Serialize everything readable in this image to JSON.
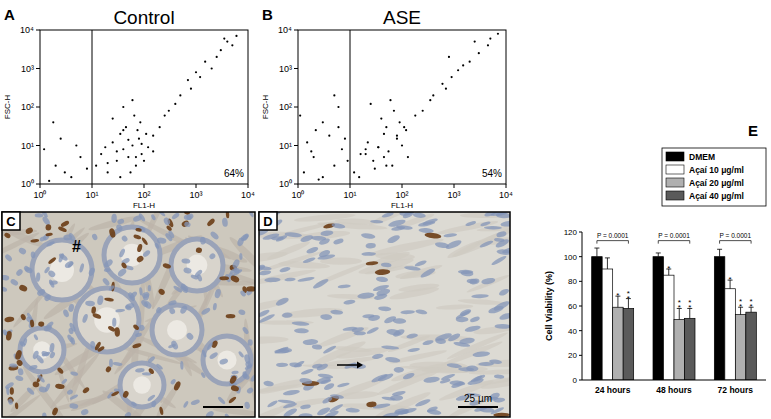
{
  "chart_data": [
    {
      "type": "scatter",
      "panel": "A",
      "title": "Control",
      "x_label": "FL1-H",
      "y_label": "FSC-H",
      "log": true,
      "xlim": [
        1,
        10000
      ],
      "ylim": [
        1,
        10000
      ],
      "xticks": [
        {
          "value": 1,
          "label": "10⁰"
        },
        {
          "value": 10,
          "label": "10¹"
        },
        {
          "value": 100,
          "label": "10²"
        },
        {
          "value": 1000,
          "label": "10³"
        },
        {
          "value": 10000,
          "label": "10⁴"
        }
      ],
      "yticks": [
        {
          "value": 1,
          "label": "10⁰"
        },
        {
          "value": 10,
          "label": "10¹"
        },
        {
          "value": 100,
          "label": "10²"
        },
        {
          "value": 1000,
          "label": "10³"
        },
        {
          "value": 10000,
          "label": "10⁴"
        }
      ],
      "gate_x": 10,
      "annotation": "64%",
      "color": "#000000",
      "marker": "dot",
      "x": [
        1.5,
        2,
        3,
        1.2,
        4,
        6,
        2.5,
        8,
        1.8,
        5,
        12,
        15,
        20,
        25,
        30,
        35,
        40,
        50,
        60,
        70,
        80,
        90,
        100,
        120,
        150,
        45,
        55,
        65,
        75,
        35,
        25,
        18,
        40,
        60,
        85,
        110,
        200,
        300,
        500,
        700,
        1000,
        1500,
        2000,
        3000,
        4000,
        6000,
        800,
        1200,
        2500,
        5000,
        50,
        70,
        30,
        90,
        150,
        20,
        40,
        250,
        400,
        3500
      ],
      "y": [
        1.2,
        3,
        2,
        8,
        1.5,
        5,
        15,
        2.5,
        40,
        10,
        3,
        6,
        2,
        12,
        4,
        20,
        8,
        5,
        10,
        3,
        15,
        6,
        4,
        9,
        7,
        30,
        2,
        60,
        25,
        1.5,
        50,
        9,
        100,
        150,
        40,
        20,
        30,
        80,
        200,
        500,
        800,
        1500,
        1000,
        3000,
        5000,
        7000,
        300,
        600,
        2000,
        4000,
        14,
        5,
        7,
        11,
        18,
        3.5,
        25,
        60,
        120,
        6000
      ]
    },
    {
      "type": "scatter",
      "panel": "B",
      "title": "ASE",
      "x_label": "FL1-H",
      "y_label": "FSC-H",
      "log": true,
      "xlim": [
        1,
        10000
      ],
      "ylim": [
        1,
        10000
      ],
      "xticks": [
        {
          "value": 1,
          "label": "10⁰"
        },
        {
          "value": 10,
          "label": "10¹"
        },
        {
          "value": 100,
          "label": "10²"
        },
        {
          "value": 1000,
          "label": "10³"
        },
        {
          "value": 10000,
          "label": "10⁴"
        }
      ],
      "yticks": [
        {
          "value": 1,
          "label": "10⁰"
        },
        {
          "value": 10,
          "label": "10¹"
        },
        {
          "value": 100,
          "label": "10²"
        },
        {
          "value": 1000,
          "label": "10³"
        },
        {
          "value": 10000,
          "label": "10⁴"
        }
      ],
      "gate_x": 10,
      "annotation": "54%",
      "color": "#000000",
      "marker": "dot",
      "x": [
        1.3,
        2,
        3,
        1.5,
        5,
        7,
        2.2,
        9,
        1.1,
        4,
        3,
        6,
        8,
        5,
        12,
        16,
        22,
        28,
        35,
        45,
        55,
        65,
        80,
        100,
        130,
        40,
        50,
        70,
        30,
        25,
        20,
        15,
        60,
        90,
        120,
        180,
        250,
        400,
        600,
        900,
        1200,
        2000,
        3000,
        4500,
        7000,
        700,
        1500,
        2500,
        50,
        35,
        45,
        80,
        110,
        20,
        6,
        350,
        5000,
        800,
        2.5,
        1.8
      ],
      "y": [
        2,
        5,
        1.5,
        12,
        3,
        8,
        25,
        4,
        60,
        18,
        40,
        100,
        15,
        200,
        2,
        6,
        12,
        4,
        9,
        20,
        7,
        3,
        15,
        10,
        5,
        50,
        30,
        80,
        2.5,
        120,
        8,
        1.5,
        150,
        40,
        25,
        60,
        80,
        200,
        400,
        600,
        900,
        1500,
        2500,
        4000,
        8000,
        300,
        1200,
        5000,
        3,
        9,
        5,
        18,
        30,
        6,
        30,
        150,
        6000,
        2000,
        1.3,
        7
      ]
    },
    {
      "type": "bar",
      "panel": "E",
      "y_label": "Cell Viability (%)",
      "categories": [
        "24 hours",
        "48 hours",
        "72 hours"
      ],
      "ylim": [
        0,
        120
      ],
      "yticks": [
        0,
        20,
        40,
        60,
        80,
        100,
        120
      ],
      "legend": "top-right",
      "series": [
        {
          "name": "DMEM",
          "color": "#000000",
          "values": [
            100,
            100,
            100
          ],
          "errors": [
            7,
            3,
            6
          ],
          "significance": [
            null,
            null,
            null
          ]
        },
        {
          "name": "Açaí 10 μg/ml",
          "color": "#ffffff",
          "values": [
            90,
            85,
            74
          ],
          "errors": [
            9,
            5,
            7
          ],
          "significance": [
            null,
            "*",
            "*"
          ]
        },
        {
          "name": "Açaí 20 μg/ml",
          "color": "#b0b0b0",
          "values": [
            59,
            49,
            53
          ],
          "errors": [
            9,
            9,
            6
          ],
          "significance": [
            "*",
            "**",
            "**"
          ]
        },
        {
          "name": "Açaí 40 μg/ml",
          "color": "#5a5a5a",
          "values": [
            58,
            50,
            55
          ],
          "errors": [
            8,
            8,
            4
          ],
          "significance": [
            "**",
            "**",
            "**"
          ]
        }
      ],
      "annotations": [
        {
          "text": "P = 0.0001",
          "category": 0,
          "y": 113
        },
        {
          "text": "P = 0.0001",
          "category": 1,
          "y": 113
        },
        {
          "text": "P = 0.0001",
          "category": 2,
          "y": 113
        }
      ]
    }
  ],
  "images": [
    {
      "panel": "C",
      "annotation": "#"
    },
    {
      "panel": "D",
      "scale_bar": "25 µm"
    }
  ]
}
